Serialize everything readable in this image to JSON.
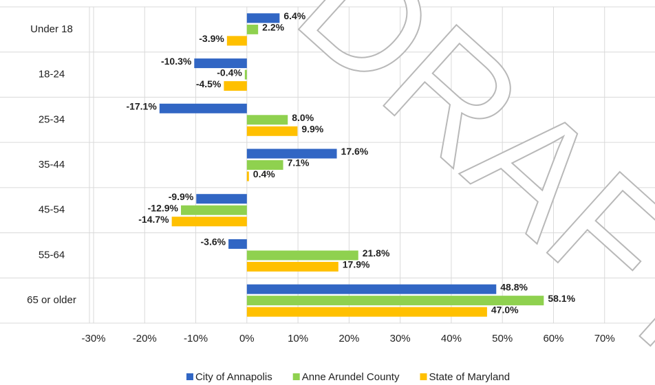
{
  "chart_data": {
    "type": "hbar",
    "watermark": "DRAFT",
    "categories": [
      "Under 18",
      "18-24",
      "25-34",
      "35-44",
      "45-54",
      "55-64",
      "65 or older"
    ],
    "series": [
      {
        "name": "City of Annapolis",
        "color": "#3166c4",
        "label_color": "#3a5ba8",
        "values": [
          6.4,
          -10.3,
          -17.1,
          17.6,
          -9.9,
          -3.6,
          48.8
        ],
        "value_labels": [
          "6.4%",
          "-10.3%",
          "-17.1%",
          "17.6%",
          "-9.9%",
          "-3.6%",
          "48.8%"
        ]
      },
      {
        "name": "Anne Arundel County",
        "color": "#8fd14f",
        "label_color": "#6aa03a",
        "values": [
          2.2,
          -0.4,
          8.0,
          7.1,
          -12.9,
          21.8,
          58.1
        ],
        "value_labels": [
          "2.2%",
          "-0.4%",
          "8.0%",
          "7.1%",
          "-12.9%",
          "21.8%",
          "58.1%"
        ]
      },
      {
        "name": "State of Maryland",
        "color": "#ffc000",
        "label_color": "#c49400",
        "values": [
          -3.9,
          -4.5,
          9.9,
          0.4,
          -14.7,
          17.9,
          47.0
        ],
        "value_labels": [
          "-3.9%",
          "-4.5%",
          "9.9%",
          "0.4%",
          "-14.7%",
          "17.9%",
          "47.0%"
        ]
      }
    ],
    "xlim": [
      -30,
      80
    ],
    "xticks": [
      {
        "value": -30,
        "label": "-30%"
      },
      {
        "value": -20,
        "label": "-20%"
      },
      {
        "value": -10,
        "label": "-10%"
      },
      {
        "value": 0,
        "label": "0%"
      },
      {
        "value": 10,
        "label": "10%"
      },
      {
        "value": 20,
        "label": "20%"
      },
      {
        "value": 30,
        "label": "30%"
      },
      {
        "value": 40,
        "label": "40%"
      },
      {
        "value": 50,
        "label": "50%"
      },
      {
        "value": 60,
        "label": "60%"
      },
      {
        "value": 70,
        "label": "70%"
      }
    ],
    "grid": true,
    "legend": "bottom"
  }
}
